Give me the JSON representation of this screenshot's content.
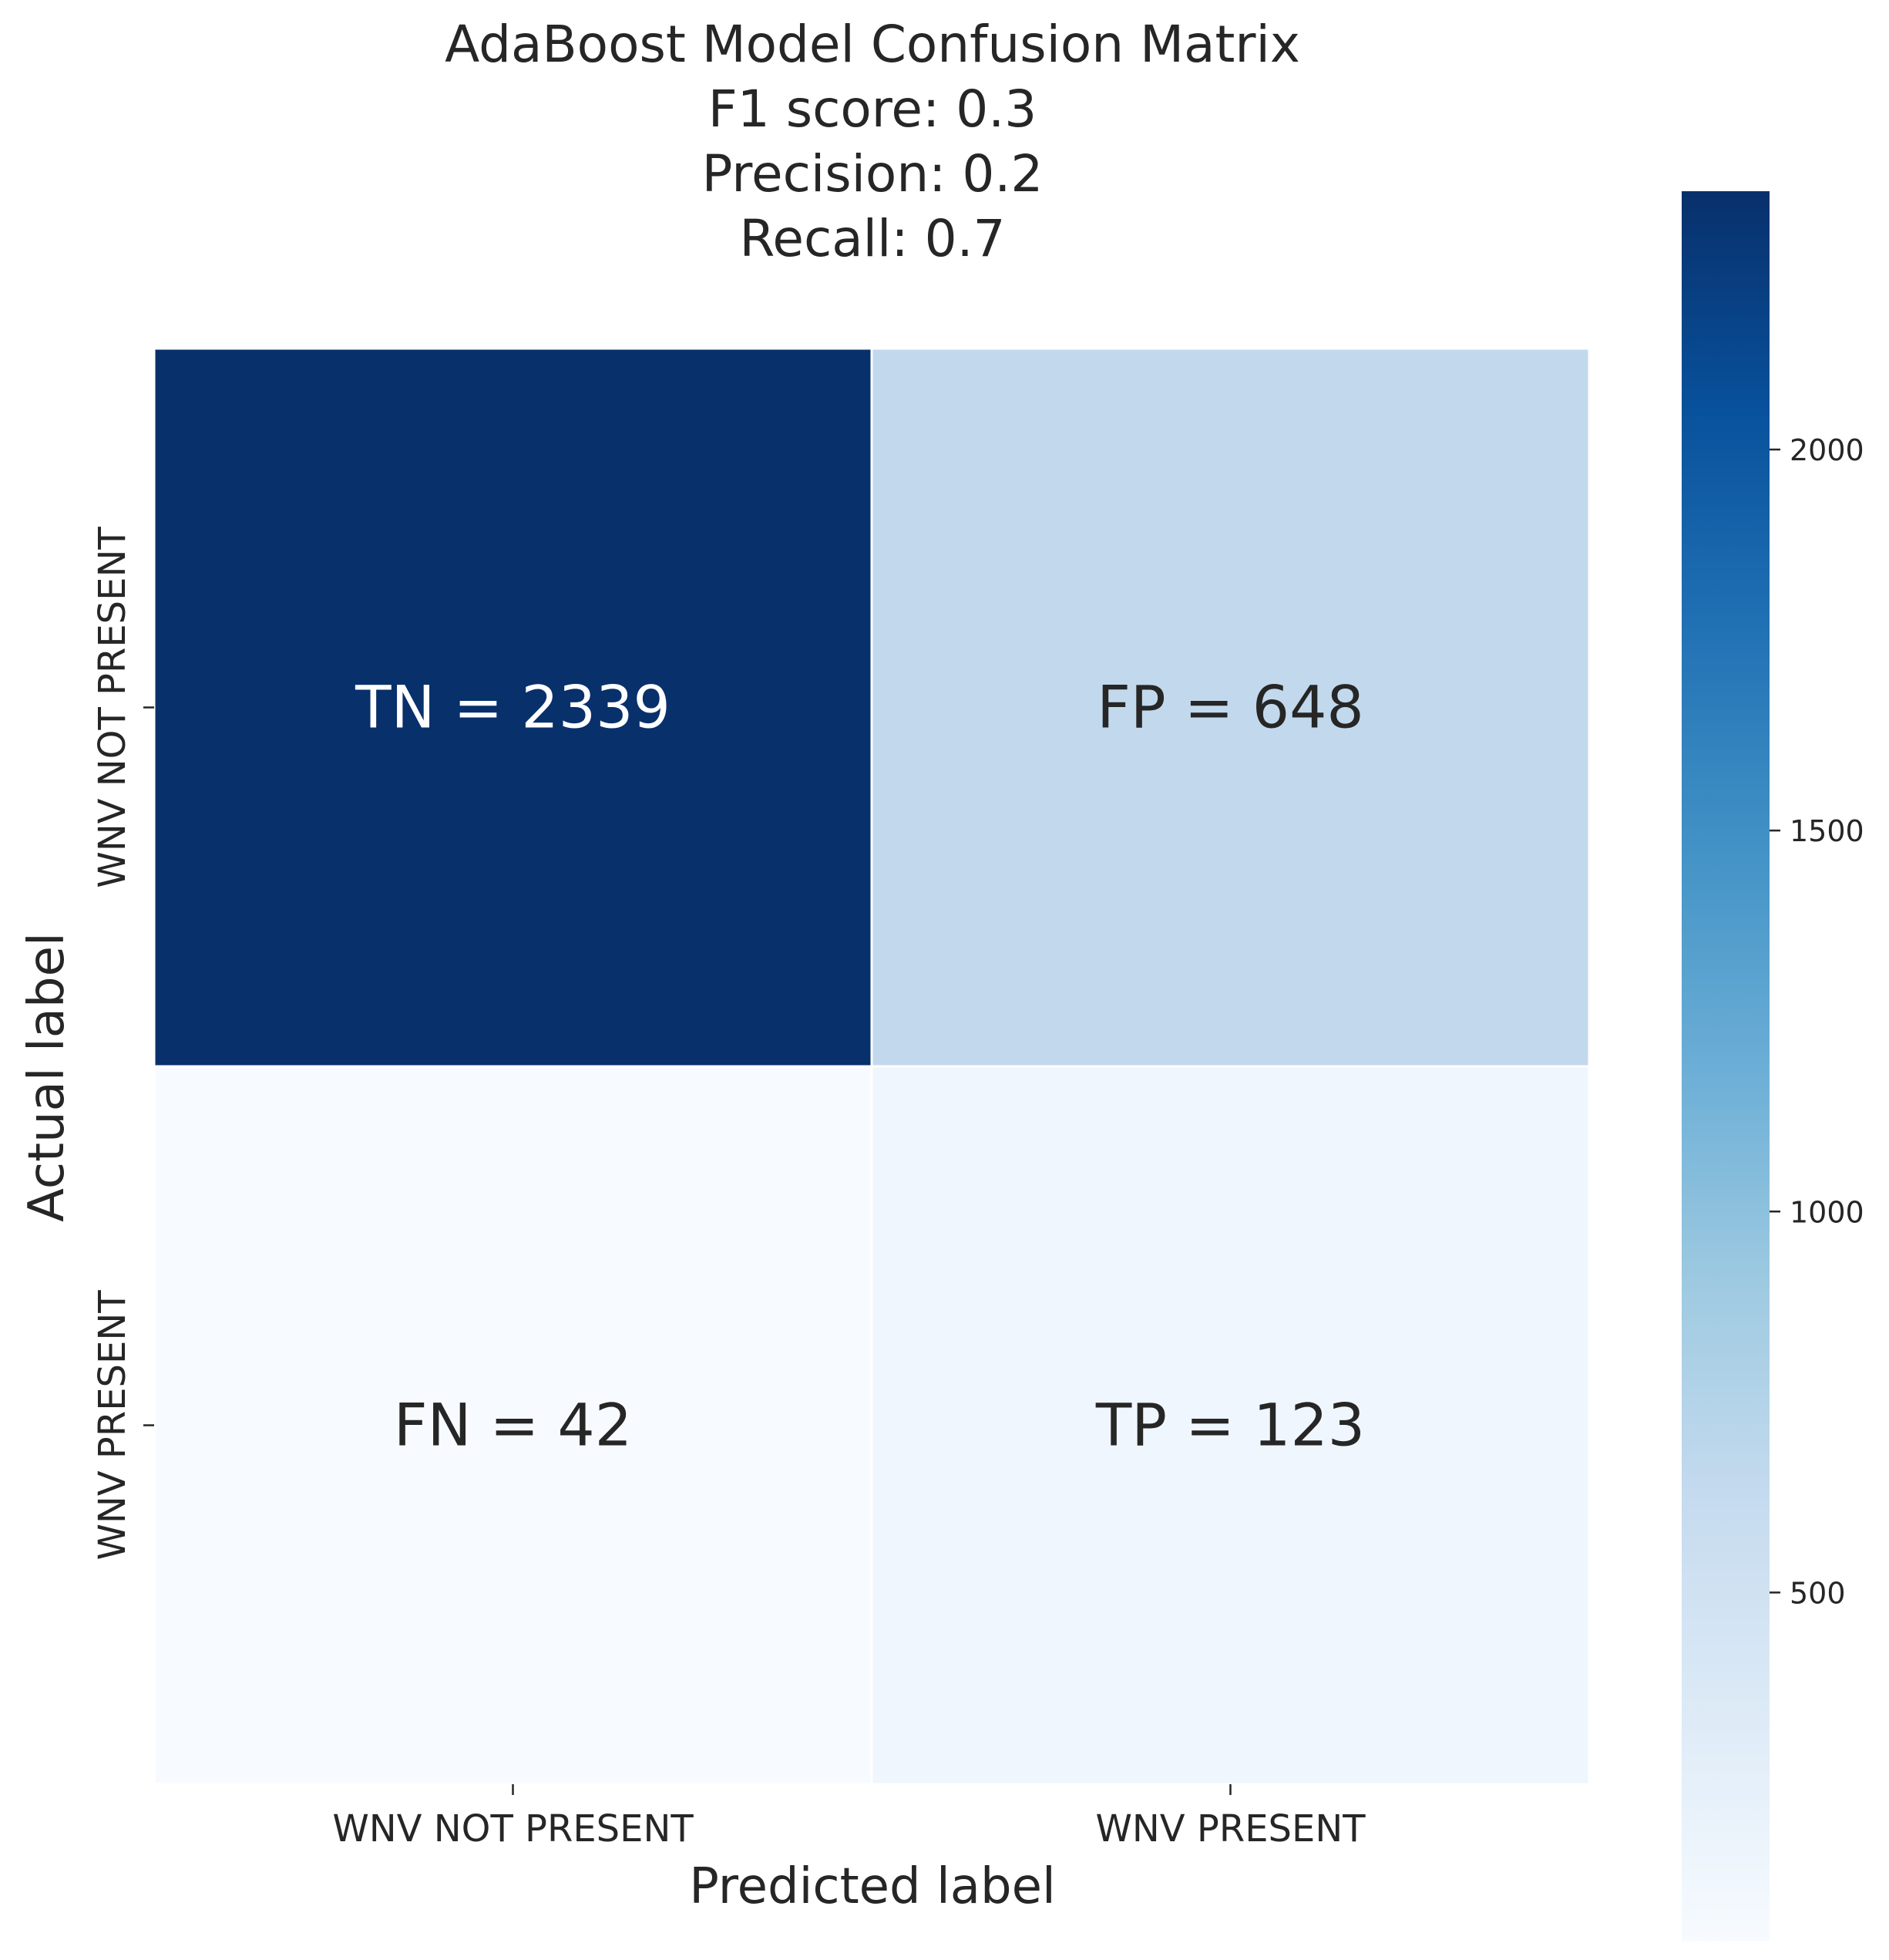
{
  "chart_data": {
    "type": "heatmap",
    "title_lines": [
      "AdaBoost Model Confusion Matrix",
      "F1 score: 0.3",
      "Precision: 0.2",
      "Recall: 0.7"
    ],
    "xlabel": "Predicted label",
    "ylabel": "Actual label",
    "x_categories": [
      "WNV NOT PRESENT",
      "WNV PRESENT"
    ],
    "y_categories": [
      "WNV NOT PRESENT",
      "WNV PRESENT"
    ],
    "values": [
      [
        2339,
        648
      ],
      [
        42,
        123
      ]
    ],
    "cell_labels": [
      [
        "TN = 2339",
        "FP = 648"
      ],
      [
        "FN = 42",
        "TP = 123"
      ]
    ],
    "colormap": "Blues",
    "color_range": [
      42,
      2339
    ],
    "colorbar_ticks": [
      500,
      1000,
      1500,
      2000
    ],
    "grid": false
  }
}
